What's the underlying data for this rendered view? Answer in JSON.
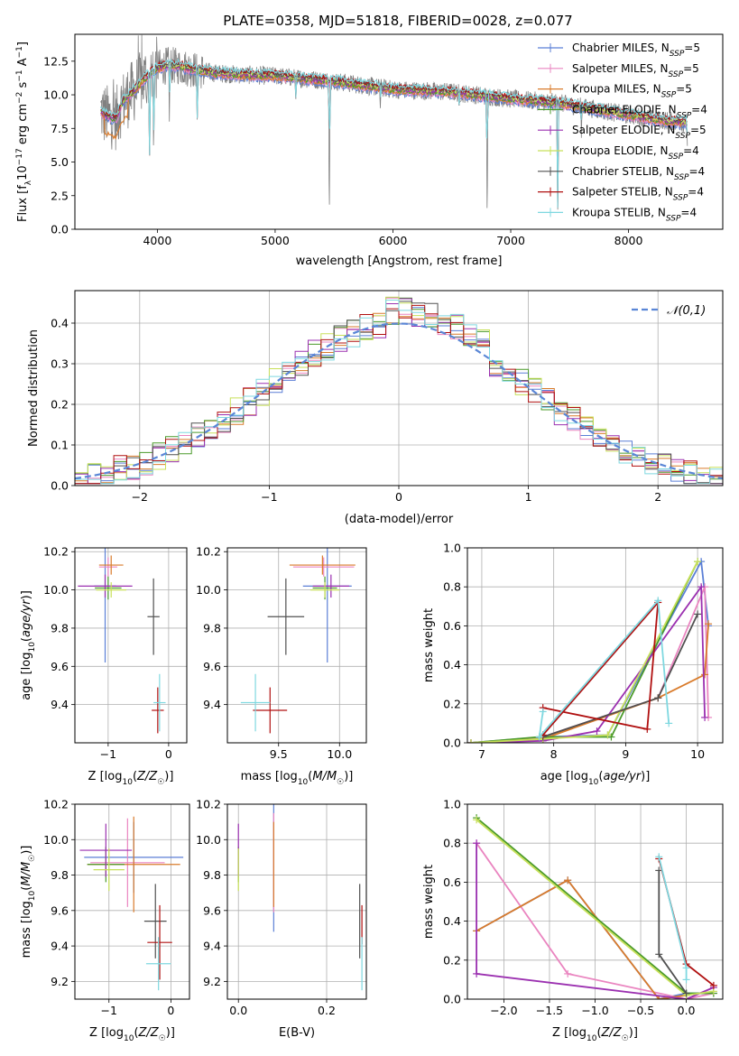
{
  "title": "PLATE=0358, MJD=51818, FIBERID=0028, z=0.077",
  "colors": {
    "Chabrier MILES": "#5b7fd6",
    "Salpeter MILES": "#ea85c0",
    "Kroupa MILES": "#d97b2b",
    "Chabrier ELODIE": "#4a9a2a",
    "Salpeter ELODIE": "#9b30b0",
    "Kroupa ELODIE": "#c8e05a",
    "Chabrier STELIB": "#505050",
    "Salpeter STELIB": "#b01010",
    "Kroupa STELIB": "#7fd8e0",
    "data": "#808080",
    "gaussian": "#5a86d6"
  },
  "chart_data": [
    {
      "type": "line",
      "id": "spectrum",
      "title": "PLATE=0358, MJD=51818, FIBERID=0028, z=0.077",
      "xlabel": "wavelength [Angstrom, rest frame]",
      "ylabel": "Flux [f_λ 10^-17 erg cm^-2 s^-1 A^-1]",
      "xlim": [
        3300,
        8800
      ],
      "ylim": [
        0,
        14.5
      ],
      "xticks": [
        4000,
        5000,
        6000,
        7000,
        8000
      ],
      "yticks": [
        "0.0",
        "2.5",
        "5.0",
        "7.5",
        "10.0",
        "12.5"
      ],
      "legend": [
        "Chabrier MILES, N_SSP=5",
        "Salpeter MILES, N_SSP=5",
        "Kroupa MILES, N_SSP=5",
        "Chabrier ELODIE, N_SSP=4",
        "Salpeter ELODIE, N_SSP=5",
        "Kroupa ELODIE, N_SSP=4",
        "Chabrier STELIB, N_SSP=4",
        "Salpeter STELIB, N_SSP=4",
        "Kroupa STELIB, N_SSP=4"
      ],
      "continuum": {
        "x": [
          3500,
          3550,
          3650,
          3700,
          3800,
          3900,
          4000,
          4100,
          4200,
          4300,
          4500,
          4700,
          5000,
          5500,
          6000,
          6500,
          7000,
          7400,
          7800,
          8200,
          8500
        ],
        "y": [
          9.0,
          8.5,
          8.2,
          9.4,
          10.3,
          11.3,
          12.0,
          12.2,
          12.1,
          11.9,
          11.6,
          11.5,
          11.4,
          11.0,
          10.4,
          10.2,
          9.7,
          9.4,
          8.8,
          8.2,
          7.9
        ]
      },
      "dips": [
        [
          3933,
          4.2
        ],
        [
          3968,
          5.0
        ],
        [
          4102,
          8.0
        ],
        [
          4340,
          7.5
        ],
        [
          5175,
          9.5
        ],
        [
          5460,
          0.0
        ],
        [
          5893,
          9.0
        ],
        [
          6563,
          9.0
        ],
        [
          6800,
          0.0
        ],
        [
          7400,
          0.0
        ],
        [
          7600,
          6.8
        ],
        [
          8500,
          6.2
        ]
      ]
    },
    {
      "type": "bar",
      "id": "residuals",
      "xlabel": "(data-model)/error",
      "ylabel": "Normed distribution",
      "xlim": [
        -2.5,
        2.5
      ],
      "ylim": [
        0,
        0.48
      ],
      "xticks": [
        -2,
        -1,
        0,
        1,
        2
      ],
      "yticks": [
        "0.0",
        "0.1",
        "0.2",
        "0.3",
        "0.4"
      ],
      "legend": [
        "𝒩(0,1)"
      ],
      "bin_width": 0.1
    },
    {
      "type": "scatter",
      "id": "age-vs-Z",
      "xlabel": "Z [log10(Z/Z☉)]",
      "ylabel": "age [log10(age/yr)]",
      "xlim": [
        -1.55,
        0.3
      ],
      "ylim": [
        9.2,
        10.22
      ],
      "xticks": [
        "-1",
        "0"
      ],
      "yticks": [
        "9.4",
        "9.6",
        "9.8",
        "10.0",
        "10.2"
      ],
      "points": [
        {
          "model": "Chabrier MILES",
          "x": -1.05,
          "xerr": 0.18,
          "y": 10.02,
          "yerr": 0.4
        },
        {
          "model": "Salpeter MILES",
          "x": -1.0,
          "xerr": 0.15,
          "y": 10.12,
          "yerr": 0.05
        },
        {
          "model": "Kroupa MILES",
          "x": -0.95,
          "xerr": 0.2,
          "y": 10.13,
          "yerr": 0.05
        },
        {
          "model": "Chabrier ELODIE",
          "x": -1.0,
          "xerr": 0.22,
          "y": 10.01,
          "yerr": 0.06
        },
        {
          "model": "Salpeter ELODIE",
          "x": -1.05,
          "xerr": 0.45,
          "y": 10.02,
          "yerr": 0.06
        },
        {
          "model": "Kroupa ELODIE",
          "x": -0.95,
          "xerr": 0.25,
          "y": 10.0,
          "yerr": 0.04
        },
        {
          "model": "Chabrier STELIB",
          "x": -0.25,
          "xerr": 0.1,
          "y": 9.86,
          "yerr": 0.2
        },
        {
          "model": "Salpeter STELIB",
          "x": -0.18,
          "xerr": 0.1,
          "y": 9.37,
          "yerr": 0.12
        },
        {
          "model": "Kroupa STELIB",
          "x": -0.15,
          "xerr": 0.1,
          "y": 9.41,
          "yerr": 0.15
        }
      ]
    },
    {
      "type": "scatter",
      "id": "age-vs-mass",
      "xlabel": "mass [log10(M/M☉)]",
      "xlim": [
        9.08,
        10.22
      ],
      "ylim": [
        9.2,
        10.22
      ],
      "xticks": [
        "9.5",
        "10.0"
      ],
      "yticks": [
        "9.4",
        "9.6",
        "9.8",
        "10.0",
        "10.2"
      ],
      "points": [
        {
          "model": "Chabrier MILES",
          "x": 9.9,
          "xerr": 0.2,
          "y": 10.02,
          "yerr": 0.4
        },
        {
          "model": "Salpeter MILES",
          "x": 9.87,
          "xerr": 0.25,
          "y": 10.12,
          "yerr": 0.05
        },
        {
          "model": "Kroupa MILES",
          "x": 9.86,
          "xerr": 0.27,
          "y": 10.13,
          "yerr": 0.05
        },
        {
          "model": "Chabrier ELODIE",
          "x": 9.88,
          "xerr": 0.1,
          "y": 10.01,
          "yerr": 0.06
        },
        {
          "model": "Salpeter ELODIE",
          "x": 9.93,
          "xerr": 0.15,
          "y": 10.02,
          "yerr": 0.06
        },
        {
          "model": "Kroupa ELODIE",
          "x": 9.88,
          "xerr": 0.12,
          "y": 10.0,
          "yerr": 0.04
        },
        {
          "model": "Chabrier STELIB",
          "x": 9.56,
          "xerr": 0.15,
          "y": 9.86,
          "yerr": 0.2
        },
        {
          "model": "Salpeter STELIB",
          "x": 9.43,
          "xerr": 0.14,
          "y": 9.37,
          "yerr": 0.12
        },
        {
          "model": "Kroupa STELIB",
          "x": 9.31,
          "xerr": 0.12,
          "y": 9.41,
          "yerr": 0.15
        }
      ]
    },
    {
      "type": "line",
      "id": "massweight-vs-age",
      "xlabel": "age [log10(age/yr)]",
      "ylabel": "mass weight",
      "xlim": [
        6.8,
        10.35
      ],
      "ylim": [
        0,
        1.0
      ],
      "xticks": [
        "7",
        "8",
        "9",
        "10"
      ],
      "yticks": [
        "0.0",
        "0.2",
        "0.4",
        "0.6",
        "0.8",
        "1.0"
      ],
      "series": [
        {
          "model": "Chabrier MILES",
          "x": [
            6.85,
            7.85,
            8.75,
            10.05,
            10.15
          ],
          "y": [
            0.0,
            0.03,
            0.04,
            0.93,
            0.6
          ]
        },
        {
          "model": "Salpeter MILES",
          "x": [
            6.85,
            7.85,
            9.45,
            10.1,
            10.15
          ],
          "y": [
            0.0,
            0.03,
            0.23,
            0.8,
            0.13
          ]
        },
        {
          "model": "Kroupa MILES",
          "x": [
            6.85,
            7.85,
            9.45,
            10.1,
            10.15
          ],
          "y": [
            0.0,
            0.02,
            0.23,
            0.35,
            0.61
          ]
        },
        {
          "model": "Chabrier ELODIE",
          "x": [
            6.85,
            7.8,
            8.8,
            10.0
          ],
          "y": [
            0.0,
            0.03,
            0.03,
            0.93
          ]
        },
        {
          "model": "Salpeter ELODIE",
          "x": [
            6.85,
            7.85,
            8.6,
            10.05,
            10.1
          ],
          "y": [
            0.0,
            0.01,
            0.06,
            0.8,
            0.13
          ]
        },
        {
          "model": "Kroupa ELODIE",
          "x": [
            6.85,
            7.85,
            8.75,
            10.0
          ],
          "y": [
            0.0,
            0.02,
            0.04,
            0.93
          ]
        },
        {
          "model": "Chabrier STELIB",
          "x": [
            7.85,
            9.45,
            10.0
          ],
          "y": [
            0.03,
            0.23,
            0.66
          ]
        },
        {
          "model": "Salpeter STELIB",
          "x": [
            7.85,
            9.3,
            9.45,
            7.85
          ],
          "y": [
            0.18,
            0.07,
            0.72,
            0.04
          ]
        },
        {
          "model": "Kroupa STELIB",
          "x": [
            7.85,
            7.8,
            9.45,
            9.6
          ],
          "y": [
            0.16,
            0.03,
            0.73,
            0.1
          ]
        }
      ]
    },
    {
      "type": "scatter",
      "id": "mass-vs-Z",
      "xlabel": "Z [log10(Z/Z☉)]",
      "ylabel": "mass [log10(M/M☉)]",
      "xlim": [
        -1.55,
        0.3
      ],
      "ylim": [
        9.1,
        10.2
      ],
      "xticks": [
        "-1",
        "0"
      ],
      "yticks": [
        "9.2",
        "9.4",
        "9.6",
        "9.8",
        "10.0",
        "10.2"
      ],
      "points": [
        {
          "model": "Chabrier MILES",
          "x": -0.6,
          "xerr": 0.8,
          "y": 9.9,
          "yerr": 0.2
        },
        {
          "model": "Salpeter MILES",
          "x": -0.7,
          "xerr": 0.6,
          "y": 9.87,
          "yerr": 0.25
        },
        {
          "model": "Kroupa MILES",
          "x": -0.6,
          "xerr": 0.75,
          "y": 9.86,
          "yerr": 0.27
        },
        {
          "model": "Chabrier ELODIE",
          "x": -1.05,
          "xerr": 0.3,
          "y": 9.86,
          "yerr": 0.1
        },
        {
          "model": "Salpeter ELODIE",
          "x": -1.05,
          "xerr": 0.42,
          "y": 9.94,
          "yerr": 0.15
        },
        {
          "model": "Kroupa ELODIE",
          "x": -1.0,
          "xerr": 0.25,
          "y": 9.83,
          "yerr": 0.12
        },
        {
          "model": "Chabrier STELIB",
          "x": -0.25,
          "xerr": 0.18,
          "y": 9.54,
          "yerr": 0.21
        },
        {
          "model": "Salpeter STELIB",
          "x": -0.18,
          "xerr": 0.2,
          "y": 9.42,
          "yerr": 0.21
        },
        {
          "model": "Kroupa STELIB",
          "x": -0.2,
          "xerr": 0.2,
          "y": 9.3,
          "yerr": 0.15
        }
      ]
    },
    {
      "type": "scatter",
      "id": "mass-vs-EBV",
      "xlabel": "E(B-V)",
      "xlim": [
        -0.025,
        0.29
      ],
      "ylim": [
        9.1,
        10.2
      ],
      "xticks": [
        "0.0",
        "0.2"
      ],
      "yticks": [
        "9.2",
        "9.4",
        "9.6",
        "9.8",
        "10.0",
        "10.2"
      ],
      "points": [
        {
          "model": "Chabrier MILES",
          "x": 0.08,
          "xerr": 0,
          "y": 9.9,
          "yerr": 0.42
        },
        {
          "model": "Salpeter MILES",
          "x": 0.08,
          "xerr": 0,
          "y": 9.87,
          "yerr": 0.28
        },
        {
          "model": "Kroupa MILES",
          "x": 0.08,
          "xerr": 0,
          "y": 9.86,
          "yerr": 0.24
        },
        {
          "model": "Chabrier ELODIE",
          "x": 0.0,
          "xerr": 0,
          "y": 9.86,
          "yerr": 0.1
        },
        {
          "model": "Salpeter ELODIE",
          "x": 0.0,
          "xerr": 0,
          "y": 9.94,
          "yerr": 0.15
        },
        {
          "model": "Kroupa ELODIE",
          "x": 0.0,
          "xerr": 0,
          "y": 9.83,
          "yerr": 0.12
        },
        {
          "model": "Chabrier STELIB",
          "x": 0.275,
          "xerr": 0,
          "y": 9.54,
          "yerr": 0.21
        },
        {
          "model": "Salpeter STELIB",
          "x": 0.28,
          "xerr": 0,
          "y": 9.52,
          "yerr": 0.11
        },
        {
          "model": "Kroupa STELIB",
          "x": 0.28,
          "xerr": 0,
          "y": 9.3,
          "yerr": 0.15
        }
      ]
    },
    {
      "type": "line",
      "id": "massweight-vs-Z",
      "xlabel": "Z [log10(Z/Z☉)]",
      "ylabel": "mass weight",
      "xlim": [
        -2.4,
        0.4
      ],
      "ylim": [
        0,
        1.0
      ],
      "xticks": [
        "-2.0",
        "-1.5",
        "-1.0",
        "-0.5",
        "0.0"
      ],
      "yticks": [
        "0.0",
        "0.2",
        "0.4",
        "0.6",
        "0.8",
        "1.0"
      ],
      "series": [
        {
          "model": "Chabrier MILES",
          "x": [
            -2.3,
            -1.3,
            -0.3,
            0.0,
            0.3
          ],
          "y": [
            0.35,
            0.61,
            0.0,
            0.03,
            0.03
          ]
        },
        {
          "model": "Salpeter MILES",
          "x": [
            -2.3,
            -1.3,
            0.0,
            0.3
          ],
          "y": [
            0.8,
            0.13,
            0.0,
            0.03
          ]
        },
        {
          "model": "Kroupa MILES",
          "x": [
            -2.3,
            -1.3,
            -0.3,
            0.0
          ],
          "y": [
            0.35,
            0.61,
            0.0,
            0.02
          ]
        },
        {
          "model": "Chabrier ELODIE",
          "x": [
            -2.3,
            0.0,
            0.3
          ],
          "y": [
            0.93,
            0.03,
            0.03
          ]
        },
        {
          "model": "Salpeter ELODIE",
          "x": [
            -2.3,
            -2.3,
            0.0,
            0.3
          ],
          "y": [
            0.8,
            0.13,
            0.0,
            0.06
          ]
        },
        {
          "model": "Kroupa ELODIE",
          "x": [
            -2.3,
            0.0,
            0.3
          ],
          "y": [
            0.92,
            0.02,
            0.04
          ]
        },
        {
          "model": "Chabrier STELIB",
          "x": [
            -0.3,
            -0.3,
            0.0
          ],
          "y": [
            0.66,
            0.23,
            0.03
          ]
        },
        {
          "model": "Salpeter STELIB",
          "x": [
            -0.3,
            0.0,
            0.3
          ],
          "y": [
            0.72,
            0.18,
            0.07
          ]
        },
        {
          "model": "Kroupa STELIB",
          "x": [
            -0.3,
            0.0,
            0.0
          ],
          "y": [
            0.73,
            0.16,
            0.1
          ]
        }
      ]
    }
  ]
}
